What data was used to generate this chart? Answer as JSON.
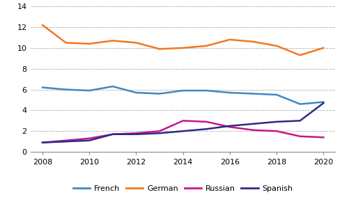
{
  "years": [
    2008,
    2009,
    2010,
    2011,
    2012,
    2013,
    2014,
    2015,
    2016,
    2017,
    2018,
    2019,
    2020
  ],
  "french": [
    6.2,
    6.0,
    5.9,
    6.3,
    5.7,
    5.6,
    5.9,
    5.9,
    5.7,
    5.6,
    5.5,
    4.6,
    4.8
  ],
  "german": [
    12.2,
    10.5,
    10.4,
    10.7,
    10.5,
    9.9,
    10.0,
    10.2,
    10.8,
    10.6,
    10.2,
    9.3,
    10.0
  ],
  "russian": [
    0.9,
    1.1,
    1.3,
    1.7,
    1.8,
    2.0,
    3.0,
    2.9,
    2.4,
    2.1,
    2.0,
    1.5,
    1.4
  ],
  "spanish": [
    0.9,
    1.0,
    1.1,
    1.7,
    1.7,
    1.8,
    2.0,
    2.2,
    2.5,
    2.7,
    2.9,
    3.0,
    4.7
  ],
  "french_color": "#3d88c4",
  "german_color": "#f07820",
  "russian_color": "#c8158a",
  "spanish_color": "#2b2b8a",
  "ylim": [
    0,
    14
  ],
  "yticks": [
    0,
    2,
    4,
    6,
    8,
    10,
    12,
    14
  ],
  "xticks": [
    2008,
    2010,
    2012,
    2014,
    2016,
    2018,
    2020
  ],
  "legend_labels": [
    "French",
    "German",
    "Russian",
    "Spanish"
  ],
  "background_color": "#ffffff",
  "grid_color": "#aaaaaa",
  "linewidth": 1.8
}
